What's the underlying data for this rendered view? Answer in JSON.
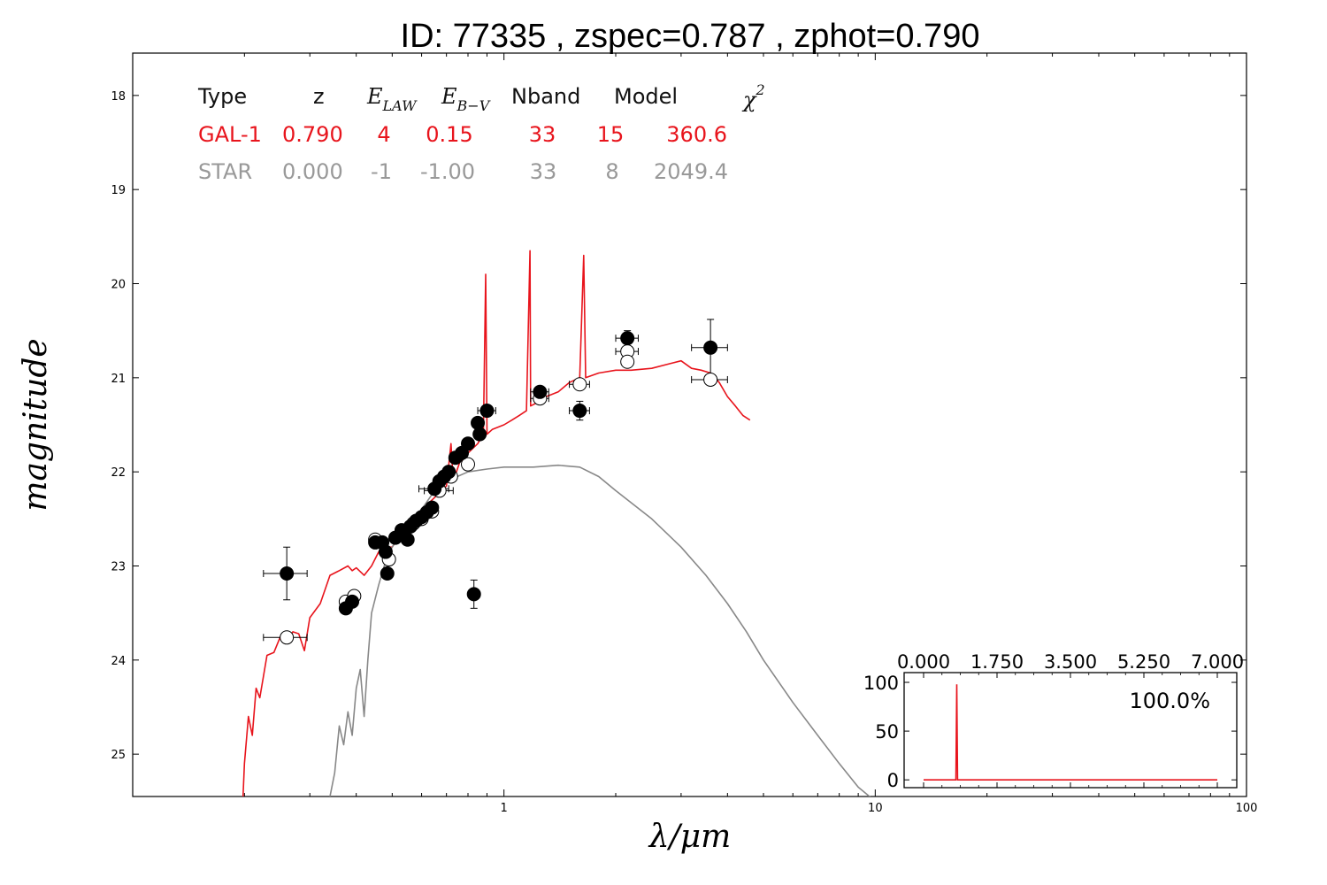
{
  "chart_data": {
    "type": "scatter",
    "title": "ID:  77335 , zspec=0.787 , zphot=0.790",
    "xlabel": "λ/μm",
    "ylabel": "magnitude",
    "x_scale": "log",
    "xlim": [
      0.1,
      100
    ],
    "ylim": [
      25.45,
      17.55
    ],
    "x_tick_labels": [
      {
        "value": 1,
        "label": "1"
      },
      {
        "value": 10,
        "label": "10"
      },
      {
        "value": 100,
        "label": "100"
      }
    ],
    "y_tick_labels": [
      {
        "value": 18,
        "label": "18"
      },
      {
        "value": 19,
        "label": "19"
      },
      {
        "value": 20,
        "label": "20"
      },
      {
        "value": 21,
        "label": "21"
      },
      {
        "value": 22,
        "label": "22"
      },
      {
        "value": 23,
        "label": "23"
      },
      {
        "value": 24,
        "label": "24"
      },
      {
        "value": 25,
        "label": "25"
      }
    ],
    "table": {
      "headers": [
        "Type",
        "z",
        "E",
        "E",
        "Nband",
        "Model",
        "χ"
      ],
      "header_subscripts": {
        "E_law": "LAW",
        "E_bv": "B−V",
        "chi_sup": "2"
      },
      "rows": [
        {
          "name": "gal",
          "color": "#e8141c",
          "cells": [
            "GAL-1",
            "0.790",
            "4",
            "0.15",
            "33",
            "15",
            "360.6"
          ]
        },
        {
          "name": "star",
          "color": "#999999",
          "cells": [
            "STAR",
            "0.000",
            "-1",
            "-1.00",
            "33",
            "8",
            "2049.4"
          ]
        }
      ]
    },
    "series": [
      {
        "name": "GAL-1",
        "kind": "line",
        "color": "#e8141c",
        "points": [
          [
            0.198,
            25.5
          ],
          [
            0.2,
            25.1
          ],
          [
            0.205,
            24.6
          ],
          [
            0.21,
            24.8
          ],
          [
            0.215,
            24.3
          ],
          [
            0.22,
            24.4
          ],
          [
            0.23,
            23.95
          ],
          [
            0.24,
            23.92
          ],
          [
            0.25,
            23.75
          ],
          [
            0.26,
            23.8
          ],
          [
            0.27,
            23.7
          ],
          [
            0.28,
            23.72
          ],
          [
            0.29,
            23.9
          ],
          [
            0.3,
            23.55
          ],
          [
            0.32,
            23.4
          ],
          [
            0.34,
            23.1
          ],
          [
            0.36,
            23.05
          ],
          [
            0.38,
            23.0
          ],
          [
            0.39,
            23.05
          ],
          [
            0.4,
            23.02
          ],
          [
            0.42,
            23.1
          ],
          [
            0.44,
            23.0
          ],
          [
            0.46,
            22.85
          ],
          [
            0.48,
            22.8
          ],
          [
            0.5,
            22.8
          ],
          [
            0.52,
            22.7
          ],
          [
            0.55,
            22.6
          ],
          [
            0.58,
            22.5
          ],
          [
            0.62,
            22.35
          ],
          [
            0.66,
            22.25
          ],
          [
            0.7,
            22.15
          ],
          [
            0.72,
            21.7
          ],
          [
            0.73,
            22.1
          ],
          [
            0.76,
            21.9
          ],
          [
            0.8,
            21.8
          ],
          [
            0.85,
            21.7
          ],
          [
            0.88,
            21.6
          ],
          [
            0.893,
            19.9
          ],
          [
            0.9,
            21.6
          ],
          [
            0.93,
            21.55
          ],
          [
            1.0,
            21.5
          ],
          [
            1.05,
            21.45
          ],
          [
            1.1,
            21.4
          ],
          [
            1.15,
            21.35
          ],
          [
            1.175,
            19.65
          ],
          [
            1.18,
            21.3
          ],
          [
            1.25,
            21.25
          ],
          [
            1.3,
            21.2
          ],
          [
            1.4,
            21.15
          ],
          [
            1.5,
            21.05
          ],
          [
            1.6,
            21.0
          ],
          [
            1.64,
            19.7
          ],
          [
            1.66,
            21.0
          ],
          [
            1.8,
            20.95
          ],
          [
            2.0,
            20.92
          ],
          [
            2.2,
            20.92
          ],
          [
            2.5,
            20.9
          ],
          [
            2.8,
            20.85
          ],
          [
            3.0,
            20.82
          ],
          [
            3.2,
            20.9
          ],
          [
            3.4,
            20.92
          ],
          [
            3.6,
            20.95
          ],
          [
            3.8,
            21.05
          ],
          [
            4.0,
            21.2
          ],
          [
            4.2,
            21.3
          ],
          [
            4.4,
            21.4
          ],
          [
            4.6,
            21.45
          ]
        ]
      },
      {
        "name": "STAR",
        "kind": "line",
        "color": "#888888",
        "points": [
          [
            0.34,
            25.45
          ],
          [
            0.35,
            25.2
          ],
          [
            0.36,
            24.7
          ],
          [
            0.37,
            24.9
          ],
          [
            0.38,
            24.55
          ],
          [
            0.39,
            24.8
          ],
          [
            0.4,
            24.3
          ],
          [
            0.41,
            24.1
          ],
          [
            0.42,
            24.6
          ],
          [
            0.43,
            24.0
          ],
          [
            0.44,
            23.5
          ],
          [
            0.46,
            23.2
          ],
          [
            0.48,
            22.95
          ],
          [
            0.5,
            22.8
          ],
          [
            0.55,
            22.55
          ],
          [
            0.6,
            22.4
          ],
          [
            0.65,
            22.2
          ],
          [
            0.7,
            22.1
          ],
          [
            0.8,
            22.0
          ],
          [
            0.9,
            21.97
          ],
          [
            1.0,
            21.95
          ],
          [
            1.2,
            21.95
          ],
          [
            1.4,
            21.93
          ],
          [
            1.6,
            21.95
          ],
          [
            1.8,
            22.05
          ],
          [
            2.0,
            22.2
          ],
          [
            2.5,
            22.5
          ],
          [
            3.0,
            22.8
          ],
          [
            3.5,
            23.1
          ],
          [
            4.0,
            23.4
          ],
          [
            4.5,
            23.7
          ],
          [
            5.0,
            24.0
          ],
          [
            6.0,
            24.45
          ],
          [
            7.0,
            24.8
          ],
          [
            8.0,
            25.1
          ],
          [
            9.0,
            25.35
          ],
          [
            10.0,
            25.5
          ]
        ]
      },
      {
        "name": "observed",
        "kind": "points",
        "marker": "filled-circle",
        "color": "#000000",
        "points": [
          {
            "x": 0.26,
            "y": 23.08,
            "xerr": 0.035,
            "yerr": 0.28
          },
          {
            "x": 0.375,
            "y": 23.45,
            "xerr": 0.0,
            "yerr": 0.0
          },
          {
            "x": 0.39,
            "y": 23.38,
            "xerr": 0.0,
            "yerr": 0.0
          },
          {
            "x": 0.45,
            "y": 22.75,
            "xerr": 0.0,
            "yerr": 0.0
          },
          {
            "x": 0.47,
            "y": 22.75,
            "xerr": 0.0,
            "yerr": 0.0
          },
          {
            "x": 0.48,
            "y": 22.85,
            "xerr": 0.0,
            "yerr": 0.0
          },
          {
            "x": 0.485,
            "y": 23.08,
            "xerr": 0.0,
            "yerr": 0.0
          },
          {
            "x": 0.51,
            "y": 22.7,
            "xerr": 0.0,
            "yerr": 0.0
          },
          {
            "x": 0.53,
            "y": 22.62,
            "xerr": 0.0,
            "yerr": 0.0
          },
          {
            "x": 0.55,
            "y": 22.72,
            "xerr": 0.0,
            "yerr": 0.0
          },
          {
            "x": 0.56,
            "y": 22.58,
            "xerr": 0.0,
            "yerr": 0.0
          },
          {
            "x": 0.58,
            "y": 22.52,
            "xerr": 0.0,
            "yerr": 0.0
          },
          {
            "x": 0.6,
            "y": 22.48,
            "xerr": 0.0,
            "yerr": 0.0
          },
          {
            "x": 0.62,
            "y": 22.43,
            "xerr": 0.0,
            "yerr": 0.0
          },
          {
            "x": 0.64,
            "y": 22.38,
            "xerr": 0.0,
            "yerr": 0.0
          },
          {
            "x": 0.65,
            "y": 22.18,
            "xerr": 0.06,
            "yerr": 0.0
          },
          {
            "x": 0.67,
            "y": 22.1,
            "xerr": 0.0,
            "yerr": 0.0
          },
          {
            "x": 0.69,
            "y": 22.05,
            "xerr": 0.0,
            "yerr": 0.0
          },
          {
            "x": 0.71,
            "y": 22.0,
            "xerr": 0.0,
            "yerr": 0.0
          },
          {
            "x": 0.74,
            "y": 21.85,
            "xerr": 0.0,
            "yerr": 0.0
          },
          {
            "x": 0.77,
            "y": 21.8,
            "xerr": 0.0,
            "yerr": 0.0
          },
          {
            "x": 0.8,
            "y": 21.7,
            "xerr": 0.0,
            "yerr": 0.0
          },
          {
            "x": 0.83,
            "y": 23.3,
            "xerr": 0.0,
            "yerr": 0.15
          },
          {
            "x": 0.85,
            "y": 21.48,
            "xerr": 0.0,
            "yerr": 0.0
          },
          {
            "x": 0.86,
            "y": 21.6,
            "xerr": 0.0,
            "yerr": 0.0
          },
          {
            "x": 0.9,
            "y": 21.35,
            "xerr": 0.05,
            "yerr": 0.0
          },
          {
            "x": 1.25,
            "y": 21.15,
            "xerr": 0.07,
            "yerr": 0.0
          },
          {
            "x": 1.6,
            "y": 21.35,
            "xerr": 0.1,
            "yerr": 0.1
          },
          {
            "x": 2.15,
            "y": 20.58,
            "xerr": 0.15,
            "yerr": 0.08
          },
          {
            "x": 3.6,
            "y": 20.68,
            "xerr": 0.4,
            "yerr": 0.3
          }
        ]
      },
      {
        "name": "model",
        "kind": "points",
        "marker": "open-circle",
        "color": "#000000",
        "points": [
          {
            "x": 0.26,
            "y": 23.76,
            "xerr": 0.035
          },
          {
            "x": 0.375,
            "y": 23.38,
            "xerr": 0.0
          },
          {
            "x": 0.395,
            "y": 23.32,
            "xerr": 0.0
          },
          {
            "x": 0.45,
            "y": 22.72,
            "xerr": 0.0
          },
          {
            "x": 0.49,
            "y": 22.93,
            "xerr": 0.0
          },
          {
            "x": 0.53,
            "y": 22.65,
            "xerr": 0.0
          },
          {
            "x": 0.57,
            "y": 22.55,
            "xerr": 0.0
          },
          {
            "x": 0.6,
            "y": 22.5,
            "xerr": 0.0
          },
          {
            "x": 0.64,
            "y": 22.42,
            "xerr": 0.0
          },
          {
            "x": 0.67,
            "y": 22.2,
            "xerr": 0.06
          },
          {
            "x": 0.72,
            "y": 22.05,
            "xerr": 0.0
          },
          {
            "x": 0.8,
            "y": 21.92,
            "xerr": 0.0
          },
          {
            "x": 1.25,
            "y": 21.22,
            "xerr": 0.07
          },
          {
            "x": 1.6,
            "y": 21.07,
            "xerr": 0.1
          },
          {
            "x": 2.15,
            "y": 20.72,
            "xerr": 0.15
          },
          {
            "x": 2.15,
            "y": 20.83,
            "xerr": 0.0
          },
          {
            "x": 3.6,
            "y": 21.02,
            "xerr": 0.4
          }
        ]
      }
    ],
    "inset": {
      "type": "line",
      "color": "#e8141c",
      "xlim": [
        0.0,
        7.0
      ],
      "ylim": [
        -8,
        110
      ],
      "x_tick_labels": [
        "0.000",
        "1.750",
        "3.500",
        "5.250",
        "7.000"
      ],
      "x_tick_values": [
        0.0,
        1.75,
        3.5,
        5.25,
        7.0
      ],
      "y_tick_labels": [
        "100",
        "50",
        "0"
      ],
      "y_tick_values": [
        100,
        50,
        0
      ],
      "annotation": "100.0%",
      "points": [
        [
          0.0,
          0
        ],
        [
          0.77,
          0
        ],
        [
          0.79,
          98
        ],
        [
          0.81,
          0
        ],
        [
          7.0,
          0
        ]
      ]
    }
  }
}
